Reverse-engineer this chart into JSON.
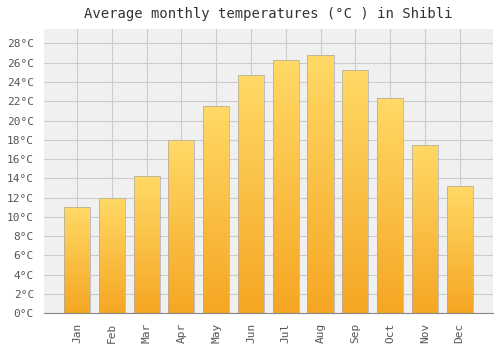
{
  "title": "Average monthly temperatures (°C ) in Shibli",
  "months": [
    "Jan",
    "Feb",
    "Mar",
    "Apr",
    "May",
    "Jun",
    "Jul",
    "Aug",
    "Sep",
    "Oct",
    "Nov",
    "Dec"
  ],
  "values": [
    11,
    12,
    14.2,
    18,
    21.5,
    24.7,
    26.3,
    26.8,
    25.2,
    22.3,
    17.5,
    13.2
  ],
  "bar_color_bottom": "#F5A623",
  "bar_color_top": "#FFD966",
  "bar_edge_color": "#AAAAAA",
  "background_color": "#FFFFFF",
  "plot_bg_color": "#F0F0F0",
  "grid_color": "#CCCCCC",
  "yticks": [
    0,
    2,
    4,
    6,
    8,
    10,
    12,
    14,
    16,
    18,
    20,
    22,
    24,
    26,
    28
  ],
  "ylim": [
    0,
    29.5
  ],
  "title_fontsize": 10,
  "tick_fontsize": 8,
  "font_family": "monospace"
}
